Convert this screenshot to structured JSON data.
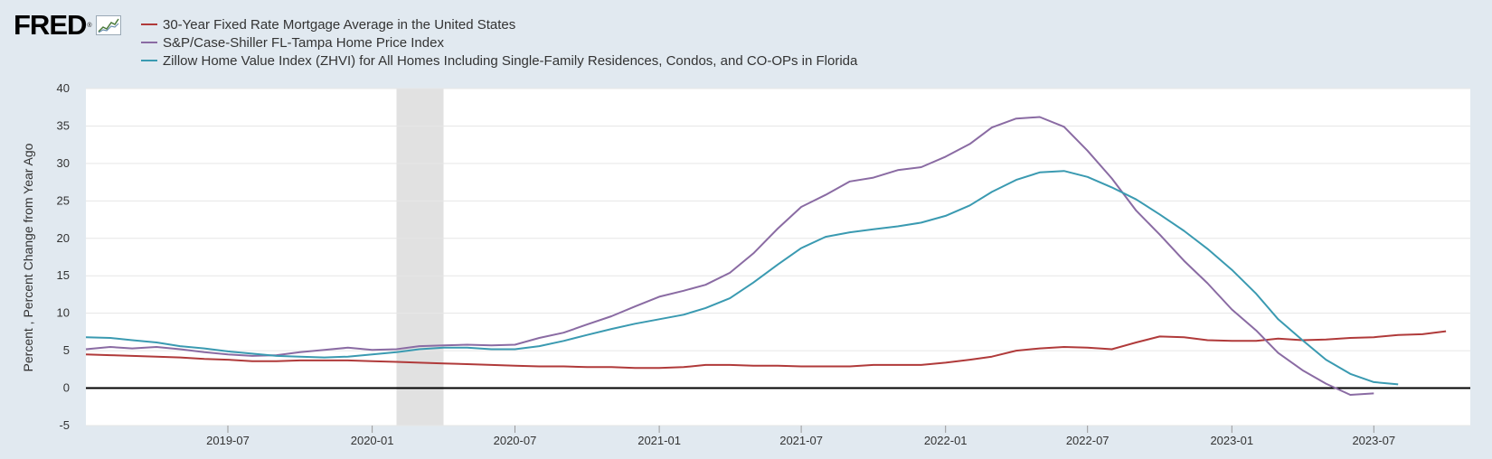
{
  "logo": {
    "text": "FRED",
    "reg": "®",
    "icon": "trend-chart-icon"
  },
  "chart_data": {
    "type": "line",
    "title": "",
    "xlabel": "",
    "ylabel": "Percent , Percent Change from Year Ago",
    "xlim": [
      "2019-01-01",
      "2023-11-01"
    ],
    "ylim": [
      -5,
      40
    ],
    "yticks": [
      -5,
      0,
      5,
      10,
      15,
      20,
      25,
      30,
      35,
      40
    ],
    "xticks": [
      "2019-07",
      "2020-01",
      "2020-07",
      "2021-01",
      "2021-07",
      "2022-01",
      "2022-07",
      "2023-01",
      "2023-07"
    ],
    "grid": "horizontal",
    "zero_line": true,
    "legend_position": "top-left",
    "recession": {
      "start": "2020-02-01",
      "end": "2020-04-01",
      "color": "#e1e1e1"
    },
    "series": [
      {
        "name": "30-Year Fixed Rate Mortgage Average in the United States",
        "color": "#b03a3a",
        "points": [
          [
            "2019-01",
            4.5
          ],
          [
            "2019-02",
            4.4
          ],
          [
            "2019-03",
            4.3
          ],
          [
            "2019-04",
            4.2
          ],
          [
            "2019-05",
            4.1
          ],
          [
            "2019-06",
            3.9
          ],
          [
            "2019-07",
            3.8
          ],
          [
            "2019-08",
            3.6
          ],
          [
            "2019-09",
            3.6
          ],
          [
            "2019-10",
            3.7
          ],
          [
            "2019-11",
            3.7
          ],
          [
            "2019-12",
            3.7
          ],
          [
            "2020-01",
            3.6
          ],
          [
            "2020-02",
            3.5
          ],
          [
            "2020-03",
            3.4
          ],
          [
            "2020-04",
            3.3
          ],
          [
            "2020-05",
            3.2
          ],
          [
            "2020-06",
            3.1
          ],
          [
            "2020-07",
            3.0
          ],
          [
            "2020-08",
            2.9
          ],
          [
            "2020-09",
            2.9
          ],
          [
            "2020-10",
            2.8
          ],
          [
            "2020-11",
            2.8
          ],
          [
            "2020-12",
            2.7
          ],
          [
            "2021-01",
            2.7
          ],
          [
            "2021-02",
            2.8
          ],
          [
            "2021-03",
            3.1
          ],
          [
            "2021-04",
            3.1
          ],
          [
            "2021-05",
            3.0
          ],
          [
            "2021-06",
            3.0
          ],
          [
            "2021-07",
            2.9
          ],
          [
            "2021-08",
            2.9
          ],
          [
            "2021-09",
            2.9
          ],
          [
            "2021-10",
            3.1
          ],
          [
            "2021-11",
            3.1
          ],
          [
            "2021-12",
            3.1
          ],
          [
            "2022-01",
            3.4
          ],
          [
            "2022-02",
            3.8
          ],
          [
            "2022-03",
            4.2
          ],
          [
            "2022-04",
            5.0
          ],
          [
            "2022-05",
            5.3
          ],
          [
            "2022-06",
            5.5
          ],
          [
            "2022-07",
            5.4
          ],
          [
            "2022-08",
            5.2
          ],
          [
            "2022-09",
            6.1
          ],
          [
            "2022-10",
            6.9
          ],
          [
            "2022-11",
            6.8
          ],
          [
            "2022-12",
            6.4
          ],
          [
            "2023-01",
            6.3
          ],
          [
            "2023-02",
            6.3
          ],
          [
            "2023-03",
            6.6
          ],
          [
            "2023-04",
            6.4
          ],
          [
            "2023-05",
            6.5
          ],
          [
            "2023-06",
            6.7
          ],
          [
            "2023-07",
            6.8
          ],
          [
            "2023-08",
            7.1
          ],
          [
            "2023-09",
            7.2
          ],
          [
            "2023-10",
            7.6
          ]
        ]
      },
      {
        "name": "S&P/Case-Shiller FL-Tampa Home Price Index",
        "color": "#8a6ba3",
        "points": [
          [
            "2019-01",
            5.2
          ],
          [
            "2019-02",
            5.5
          ],
          [
            "2019-03",
            5.3
          ],
          [
            "2019-04",
            5.5
          ],
          [
            "2019-05",
            5.2
          ],
          [
            "2019-06",
            4.8
          ],
          [
            "2019-07",
            4.5
          ],
          [
            "2019-08",
            4.3
          ],
          [
            "2019-09",
            4.4
          ],
          [
            "2019-10",
            4.8
          ],
          [
            "2019-11",
            5.1
          ],
          [
            "2019-12",
            5.4
          ],
          [
            "2020-01",
            5.1
          ],
          [
            "2020-02",
            5.2
          ],
          [
            "2020-03",
            5.6
          ],
          [
            "2020-04",
            5.7
          ],
          [
            "2020-05",
            5.8
          ],
          [
            "2020-06",
            5.7
          ],
          [
            "2020-07",
            5.8
          ],
          [
            "2020-08",
            6.7
          ],
          [
            "2020-09",
            7.4
          ],
          [
            "2020-10",
            8.5
          ],
          [
            "2020-11",
            9.6
          ],
          [
            "2020-12",
            10.9
          ],
          [
            "2021-01",
            12.2
          ],
          [
            "2021-02",
            13.0
          ],
          [
            "2021-03",
            13.8
          ],
          [
            "2021-04",
            15.4
          ],
          [
            "2021-05",
            18.0
          ],
          [
            "2021-06",
            21.3
          ],
          [
            "2021-07",
            24.2
          ],
          [
            "2021-08",
            25.8
          ],
          [
            "2021-09",
            27.6
          ],
          [
            "2021-10",
            28.1
          ],
          [
            "2021-11",
            29.1
          ],
          [
            "2021-12",
            29.5
          ],
          [
            "2022-01",
            30.9
          ],
          [
            "2022-02",
            32.6
          ],
          [
            "2022-03",
            34.8
          ],
          [
            "2022-04",
            36.0
          ],
          [
            "2022-05",
            36.2
          ],
          [
            "2022-06",
            34.9
          ],
          [
            "2022-07",
            31.7
          ],
          [
            "2022-08",
            28.0
          ],
          [
            "2022-09",
            23.7
          ],
          [
            "2022-10",
            20.5
          ],
          [
            "2022-11",
            17.0
          ],
          [
            "2022-12",
            14.0
          ],
          [
            "2023-01",
            10.5
          ],
          [
            "2023-02",
            7.7
          ],
          [
            "2023-03",
            4.7
          ],
          [
            "2023-04",
            2.4
          ],
          [
            "2023-05",
            0.6
          ],
          [
            "2023-06",
            -0.9
          ],
          [
            "2023-07",
            -0.7
          ]
        ]
      },
      {
        "name": "Zillow Home Value Index (ZHVI) for All Homes Including Single-Family Residences, Condos, and CO-OPs in Florida",
        "color": "#3a9ab1",
        "points": [
          [
            "2019-01",
            6.8
          ],
          [
            "2019-02",
            6.7
          ],
          [
            "2019-03",
            6.4
          ],
          [
            "2019-04",
            6.1
          ],
          [
            "2019-05",
            5.6
          ],
          [
            "2019-06",
            5.3
          ],
          [
            "2019-07",
            4.9
          ],
          [
            "2019-08",
            4.6
          ],
          [
            "2019-09",
            4.3
          ],
          [
            "2019-10",
            4.2
          ],
          [
            "2019-11",
            4.1
          ],
          [
            "2019-12",
            4.2
          ],
          [
            "2020-01",
            4.5
          ],
          [
            "2020-02",
            4.8
          ],
          [
            "2020-03",
            5.2
          ],
          [
            "2020-04",
            5.4
          ],
          [
            "2020-05",
            5.4
          ],
          [
            "2020-06",
            5.2
          ],
          [
            "2020-07",
            5.2
          ],
          [
            "2020-08",
            5.6
          ],
          [
            "2020-09",
            6.3
          ],
          [
            "2020-10",
            7.1
          ],
          [
            "2020-11",
            7.9
          ],
          [
            "2020-12",
            8.6
          ],
          [
            "2021-01",
            9.2
          ],
          [
            "2021-02",
            9.8
          ],
          [
            "2021-03",
            10.7
          ],
          [
            "2021-04",
            12.0
          ],
          [
            "2021-05",
            14.1
          ],
          [
            "2021-06",
            16.5
          ],
          [
            "2021-07",
            18.7
          ],
          [
            "2021-08",
            20.2
          ],
          [
            "2021-09",
            20.8
          ],
          [
            "2021-10",
            21.2
          ],
          [
            "2021-11",
            21.6
          ],
          [
            "2021-12",
            22.1
          ],
          [
            "2022-01",
            23.0
          ],
          [
            "2022-02",
            24.4
          ],
          [
            "2022-03",
            26.2
          ],
          [
            "2022-04",
            27.8
          ],
          [
            "2022-05",
            28.8
          ],
          [
            "2022-06",
            29.0
          ],
          [
            "2022-07",
            28.2
          ],
          [
            "2022-08",
            26.8
          ],
          [
            "2022-09",
            25.2
          ],
          [
            "2022-10",
            23.2
          ],
          [
            "2022-11",
            21.0
          ],
          [
            "2022-12",
            18.6
          ],
          [
            "2023-01",
            15.8
          ],
          [
            "2023-02",
            12.6
          ],
          [
            "2023-03",
            9.2
          ],
          [
            "2023-04",
            6.4
          ],
          [
            "2023-05",
            3.8
          ],
          [
            "2023-06",
            1.9
          ],
          [
            "2023-07",
            0.8
          ],
          [
            "2023-08",
            0.5
          ]
        ]
      }
    ]
  }
}
